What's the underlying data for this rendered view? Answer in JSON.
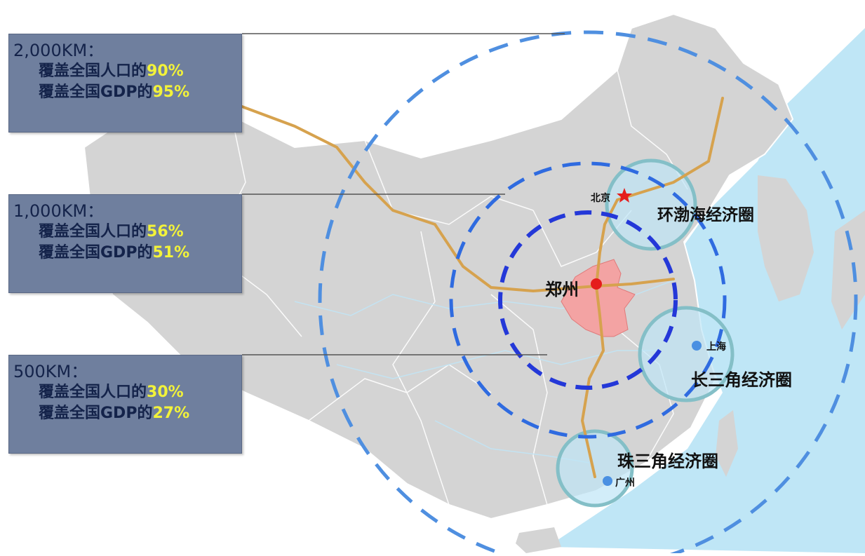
{
  "boxes": [
    {
      "title": "2,000KM：",
      "pop_prefix": "覆盖全国人口的",
      "pop_value": "90%",
      "gdp_prefix": "覆盖全国GDP的",
      "gdp_value": "95%"
    },
    {
      "title": "1,000KM：",
      "pop_prefix": "覆盖全国人口的",
      "pop_value": "56%",
      "gdp_prefix": "覆盖全国GDP的",
      "gdp_value": "51%"
    },
    {
      "title": "500KM：",
      "pop_prefix": "覆盖全国人口的",
      "pop_value": "30%",
      "gdp_prefix": "覆盖全国GDP的",
      "gdp_value": "27%"
    }
  ],
  "cities": {
    "center": "郑州",
    "capital": "北京",
    "shanghai": "上海",
    "guangzhou": "广州"
  },
  "regions": {
    "bohai": "环渤海经济圈",
    "yangtze": "长三角经济圈",
    "pearl": "珠三角经济圈"
  },
  "colors": {
    "sea": "#bfe6f6",
    "land": "#d4d4d4",
    "henan": "#f3a3a3",
    "rail": "#d6a24e",
    "ring_outer": "#4f8fe0",
    "ring_inner": "#2438d8",
    "box_bg": "#6f7f9e",
    "highlight": "#f2f23a"
  }
}
